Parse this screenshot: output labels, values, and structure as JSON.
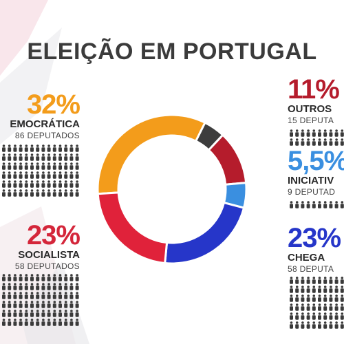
{
  "title": "ELEIÇÃO EM PORTUGAL",
  "chart_data": {
    "type": "pie",
    "title": "ELEIÇÃO EM PORTUGAL",
    "slices": [
      {
        "pct_label": "32%",
        "party": "EMOCRÁTICA",
        "seats": "86 DEPUTADOS",
        "value": 86,
        "color": "#f39c1b"
      },
      {
        "pct_label": "",
        "party": "",
        "seats": "",
        "value": 12,
        "color": "#3d3d3d"
      },
      {
        "pct_label": "11%",
        "party": "OUTROS",
        "seats": "15 DEPUTA",
        "value": 30,
        "color": "#b51c2c"
      },
      {
        "pct_label": "5,5%",
        "party": "INICIATIV",
        "seats": "9 DEPUTAD",
        "value": 14,
        "color": "#3a8fe0"
      },
      {
        "pct_label": "23%",
        "party": "CHEGA",
        "seats": "58 DEPUTA",
        "value": 58,
        "color": "#2636c9"
      },
      {
        "pct_label": "23%",
        "party": "SOCIALISTA",
        "seats": "58 DEPUTADOS",
        "value": 58,
        "color": "#e0223a"
      }
    ]
  },
  "labels": {
    "psd": {
      "pct": "32%",
      "party": "EMOCRÁTICA",
      "seats": "86 DEPUTADOS",
      "color": "#f39c1b"
    },
    "ps": {
      "pct": "23%",
      "party": "SOCIALISTA",
      "seats": "58 DEPUTADOS",
      "color": "#d4263a"
    },
    "outros": {
      "pct": "11%",
      "party": "OUTROS",
      "seats": "15 DEPUTA",
      "color": "#b51c2c"
    },
    "il": {
      "pct": "5,5%",
      "party": "INICIATIV",
      "seats": "9 DEPUTAD",
      "color": "#3a8fe0"
    },
    "chega": {
      "pct": "23%",
      "party": "CHEGA",
      "seats": "58 DEPUTA",
      "color": "#2636c9"
    }
  }
}
